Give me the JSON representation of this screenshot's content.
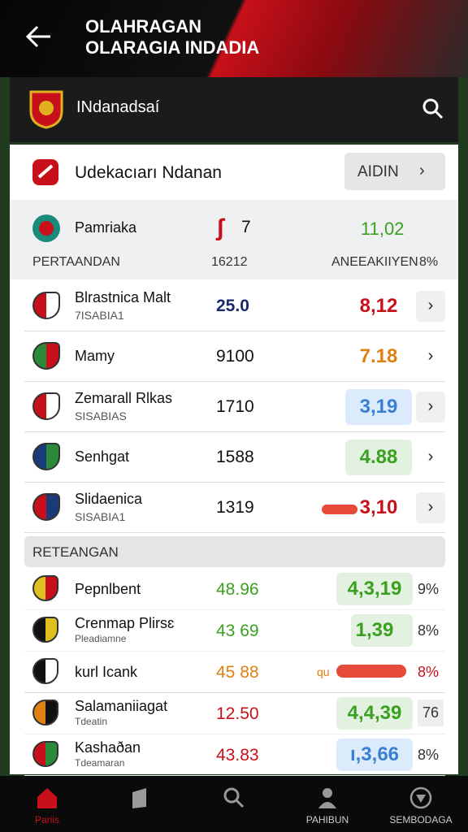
{
  "header": {
    "title_line1": "OLAHRAGAN",
    "title_line2": "OLARAGIA INDADIA"
  },
  "search": {
    "label": "INdanadsaí"
  },
  "card": {
    "title": "Udekacıarı Ndanan",
    "button": "AIDIN"
  },
  "top_row": {
    "name": "Pamriaka",
    "count": "7",
    "value": "11,02",
    "col1": "PERTAANDAN",
    "col2": "16212",
    "col3": "ANEEAKIIYEN",
    "col4": "8%"
  },
  "matches": [
    {
      "name": "Blrastnica Malt",
      "sub": "7ISABIA1",
      "score": "25.0",
      "odds": "8,12"
    },
    {
      "name": "Mamy",
      "score": "9100",
      "odds": "7.18"
    },
    {
      "name": "Zemarall Rlkas",
      "sub": "SISABIAS",
      "score": "1710",
      "odds": "3,19"
    },
    {
      "name": "Senhgat",
      "score": "1588",
      "odds": "4.88"
    },
    {
      "name": "Slidaenica",
      "sub": "SISABIA1",
      "score": "1319",
      "odds": "3,10"
    }
  ],
  "section": {
    "title": "RETEANGAN"
  },
  "standings": [
    {
      "name": "Pepnlbent",
      "score": "48.96",
      "odds": "4,3,19",
      "pct": "9%"
    },
    {
      "name": "Crenmap Plirsɛ",
      "sub": "Pleadiamne",
      "score": "43 69",
      "odds": "1,39",
      "pct": "8%"
    },
    {
      "name": "kurl Icank",
      "score": "45 88",
      "odds": "qu",
      "pct": "8%"
    },
    {
      "name": "Salamaniiagat",
      "sub": "Tdeatin",
      "score": "12.50",
      "odds": "4,4,39",
      "pct": "76"
    },
    {
      "name": "Kashaðan",
      "sub": "Tdeamaran",
      "score": "43.83",
      "odds": "ı,3,66",
      "pct": "8%"
    }
  ],
  "nav": [
    {
      "label": "Pariis"
    },
    {
      "label": "PAHIBUN"
    },
    {
      "label": "SEMBODAGA"
    }
  ]
}
